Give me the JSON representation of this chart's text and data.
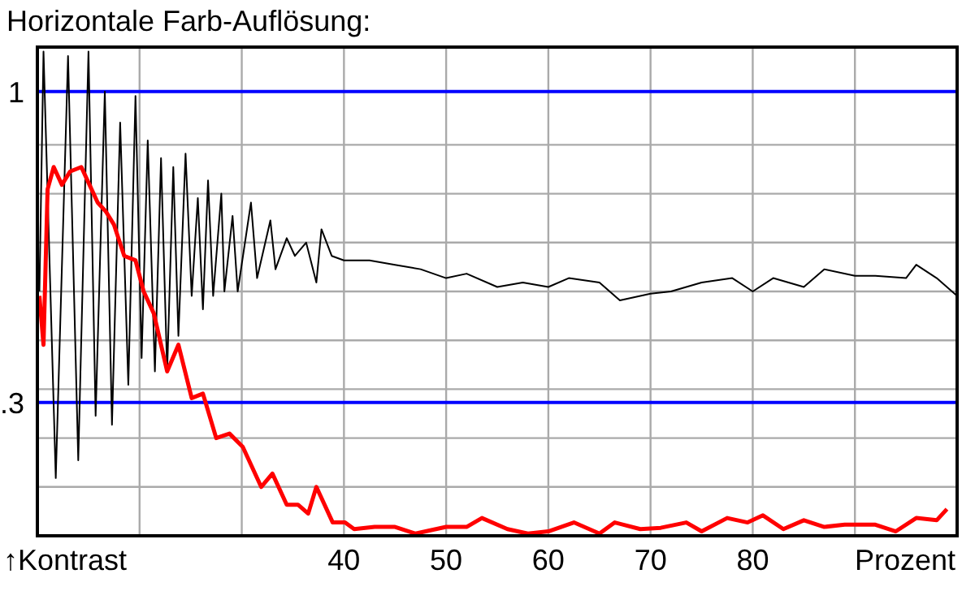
{
  "chart_data": {
    "type": "line",
    "title": "Horizontale Farb-Auflösung:",
    "xlabel": "Prozent",
    "ylabel": "↑Kontrast",
    "xlim": [
      10,
      100
    ],
    "ylim": [
      0,
      1.1
    ],
    "xticks": [
      {
        "value": 20,
        "label": null
      },
      {
        "value": 30,
        "label": null
      },
      40,
      50,
      60,
      70,
      80,
      {
        "value": 90,
        "label": null
      }
    ],
    "yticks": [
      {
        "value": 0.11,
        "label": null
      },
      {
        "value": 0.22,
        "label": null
      },
      {
        "value": 0.3,
        "label": ".3"
      },
      {
        "value": 0.33,
        "label": null
      },
      {
        "value": 0.44,
        "label": null
      },
      {
        "value": 0.55,
        "label": null
      },
      {
        "value": 0.66,
        "label": null
      },
      {
        "value": 0.77,
        "label": null
      },
      {
        "value": 0.88,
        "label": null
      },
      1
    ],
    "grid": true,
    "legend": false,
    "marker": "none",
    "line_style": "solid",
    "series": [
      {
        "color": "#000000",
        "x": [
          10.2,
          10.6,
          11.8,
          13.0,
          14.0,
          15.0,
          15.7,
          16.6,
          17.3,
          18.1,
          18.9,
          19.6,
          20.2,
          20.8,
          21.5,
          22.1,
          22.7,
          23.3,
          23.8,
          24.5,
          25.1,
          25.7,
          26.2,
          26.7,
          27.2,
          28.0,
          28.3,
          29.1,
          29.6,
          30.9,
          31.5,
          32.8,
          33.3,
          34.4,
          35.2,
          36.3,
          37.3,
          37.8,
          38.8,
          40.0,
          42.5,
          45.0,
          47.5,
          50.0,
          52.0,
          55.0,
          57.5,
          60.0,
          62.0,
          65.0,
          67.0,
          70.0,
          72.0,
          75.0,
          78.0,
          80.0,
          82.0,
          85.0,
          87.0,
          90.0,
          92.0,
          95.0,
          96.0,
          98.0,
          100.0
        ],
        "values": [
          0.55,
          1.09,
          0.13,
          1.08,
          0.17,
          1.09,
          0.27,
          1.0,
          0.25,
          0.93,
          0.34,
          0.99,
          0.4,
          0.89,
          0.37,
          0.85,
          0.37,
          0.83,
          0.45,
          0.86,
          0.54,
          0.76,
          0.51,
          0.8,
          0.54,
          0.77,
          0.55,
          0.72,
          0.55,
          0.75,
          0.58,
          0.71,
          0.6,
          0.67,
          0.63,
          0.66,
          0.57,
          0.69,
          0.63,
          0.62,
          0.62,
          0.61,
          0.6,
          0.58,
          0.59,
          0.56,
          0.57,
          0.56,
          0.58,
          0.57,
          0.53,
          0.545,
          0.55,
          0.57,
          0.58,
          0.55,
          0.58,
          0.56,
          0.6,
          0.585,
          0.585,
          0.58,
          0.61,
          0.58,
          0.54
        ]
      },
      {
        "color": "#ff0000",
        "x": [
          10.2,
          10.6,
          11.0,
          11.6,
          12.4,
          13.2,
          14.3,
          15.1,
          15.9,
          16.7,
          17.5,
          18.5,
          19.6,
          20.4,
          21.4,
          22.7,
          23.8,
          25.1,
          26.2,
          27.5,
          28.8,
          30.1,
          31.9,
          33.0,
          34.4,
          35.5,
          36.5,
          37.3,
          38.9,
          40.1,
          41.0,
          43.0,
          45.0,
          47.0,
          50.0,
          52.0,
          53.5,
          56.0,
          58.0,
          60.0,
          62.5,
          65.0,
          66.5,
          69.0,
          71.0,
          73.5,
          75.0,
          77.5,
          79.5,
          81.0,
          83.0,
          85.0,
          87.0,
          89.0,
          92.0,
          94.0,
          96.0,
          98.0,
          99.0
        ],
        "values": [
          0.54,
          0.43,
          0.78,
          0.83,
          0.79,
          0.82,
          0.83,
          0.79,
          0.75,
          0.73,
          0.7,
          0.63,
          0.62,
          0.55,
          0.5,
          0.37,
          0.43,
          0.31,
          0.32,
          0.22,
          0.23,
          0.2,
          0.11,
          0.14,
          0.07,
          0.07,
          0.05,
          0.11,
          0.03,
          0.03,
          0.015,
          0.02,
          0.02,
          0.005,
          0.02,
          0.02,
          0.04,
          0.015,
          0.005,
          0.01,
          0.03,
          0.005,
          0.03,
          0.015,
          0.018,
          0.03,
          0.01,
          0.04,
          0.03,
          0.046,
          0.015,
          0.035,
          0.02,
          0.025,
          0.025,
          0.01,
          0.04,
          0.035,
          0.06
        ]
      }
    ]
  }
}
